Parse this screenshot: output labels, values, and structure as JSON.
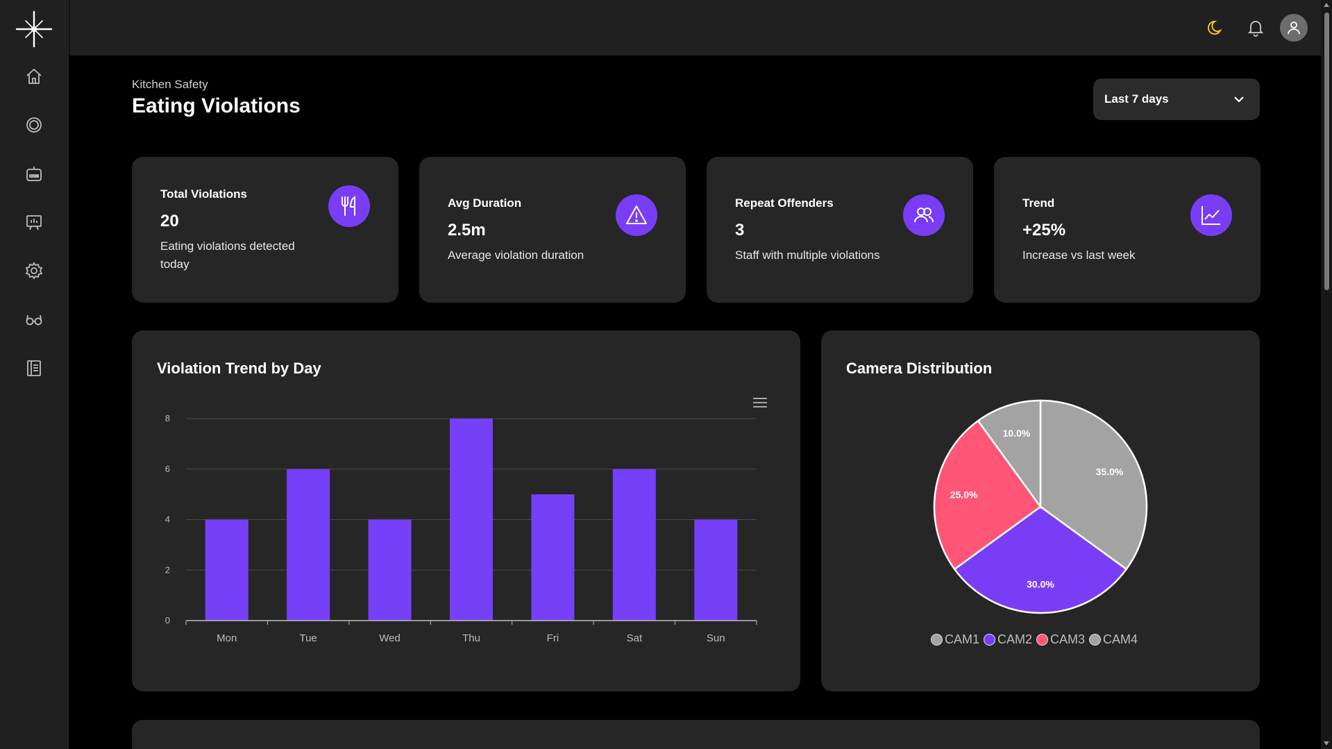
{
  "header": {
    "breadcrumb": "Kitchen Safety",
    "title": "Eating Violations",
    "range": "Last 7 days"
  },
  "stats": [
    {
      "title": "Total Violations",
      "value": "20",
      "desc": "Eating violations detected today",
      "icon": "utensils-icon"
    },
    {
      "title": "Avg Duration",
      "value": "2.5m",
      "desc": "Average violation duration",
      "icon": "warning-icon"
    },
    {
      "title": "Repeat Offenders",
      "value": "3",
      "desc": "Staff with multiple violations",
      "icon": "users-icon"
    },
    {
      "title": "Trend",
      "value": "+25%",
      "desc": "Increase vs last week",
      "icon": "line-chart-icon"
    }
  ],
  "colors": {
    "accent": "#7a3df6",
    "bar": "#7540f7",
    "cam1": "#a3a3a3",
    "cam2": "#7a3df6",
    "cam3": "#ff5577",
    "cam4": "#a3a3a3"
  },
  "chart_data": [
    {
      "type": "bar",
      "title": "Violation Trend by Day",
      "categories": [
        "Mon",
        "Tue",
        "Wed",
        "Thu",
        "Fri",
        "Sat",
        "Sun"
      ],
      "values": [
        4,
        6,
        4,
        8,
        5,
        6,
        4
      ],
      "yticks": [
        "0",
        "2",
        "4",
        "6",
        "8"
      ],
      "ylim": [
        0,
        8
      ],
      "xlabel": "",
      "ylabel": "",
      "grid": true
    },
    {
      "type": "pie",
      "title": "Camera Distribution",
      "labels": [
        "CAM1",
        "CAM2",
        "CAM3",
        "CAM4"
      ],
      "values": [
        35,
        30,
        25,
        10
      ],
      "value_labels": [
        "35.0%",
        "30.0%",
        "25.0%",
        "10.0%"
      ],
      "legend": "bottom"
    }
  ]
}
